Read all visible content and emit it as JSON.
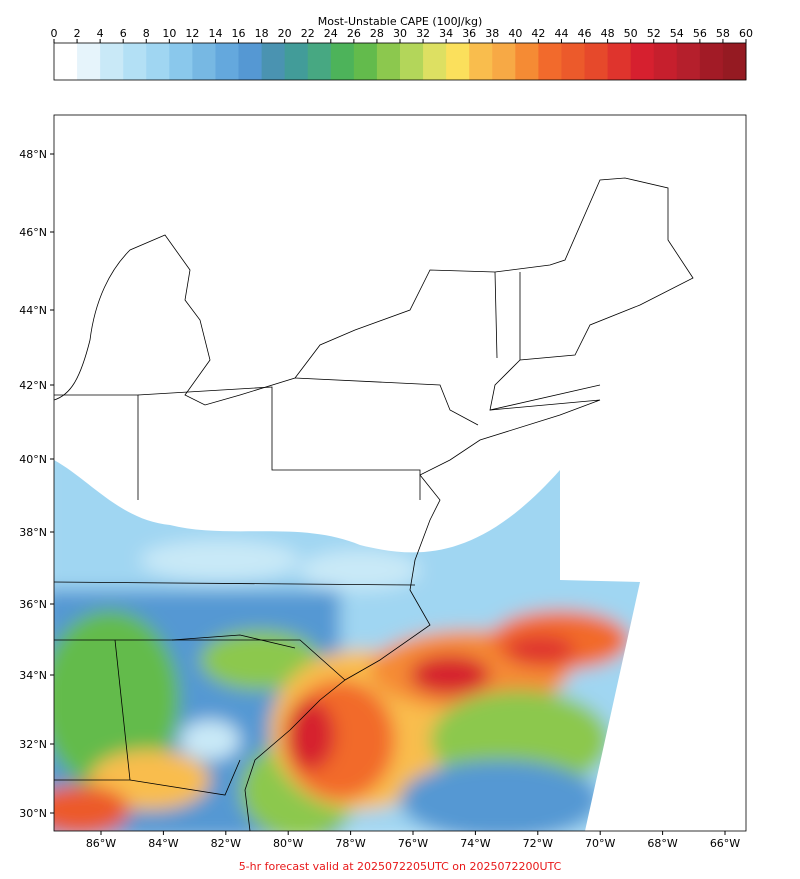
{
  "colorbar": {
    "title": "Most-Unstable CAPE (100J/kg)",
    "ticks": [
      0,
      2,
      4,
      6,
      8,
      10,
      12,
      14,
      16,
      18,
      20,
      22,
      24,
      26,
      28,
      30,
      32,
      34,
      36,
      38,
      40,
      42,
      44,
      46,
      48,
      50,
      52,
      54,
      56,
      58,
      60
    ],
    "colors": [
      "#ffffff",
      "#e6f4fb",
      "#c9e9f7",
      "#b3e0f5",
      "#a0d6f2",
      "#8ac8ec",
      "#77b8e3",
      "#64a8dd",
      "#5598d3",
      "#4a93b1",
      "#429c99",
      "#47a882",
      "#4db35a",
      "#63bb4c",
      "#8cc84e",
      "#b3d65a",
      "#dde062",
      "#fbe05c",
      "#f9bd4d",
      "#f7a945",
      "#f58b34",
      "#f26a2c",
      "#ec5a2b",
      "#e6492b",
      "#df342d",
      "#d6202f",
      "#c61f2d",
      "#b51f2c",
      "#a21b26",
      "#951a22"
    ]
  },
  "map": {
    "lat_labels": [
      "48°N",
      "46°N",
      "44°N",
      "42°N",
      "40°N",
      "38°N",
      "36°N",
      "34°N",
      "32°N",
      "30°N"
    ],
    "lon_labels": [
      "86°W",
      "84°W",
      "82°W",
      "80°W",
      "78°W",
      "76°W",
      "74°W",
      "72°W",
      "70°W",
      "68°W",
      "66°W"
    ]
  },
  "footer": "5-hr forecast valid at 2025072205UTC on 2025072200UTC"
}
